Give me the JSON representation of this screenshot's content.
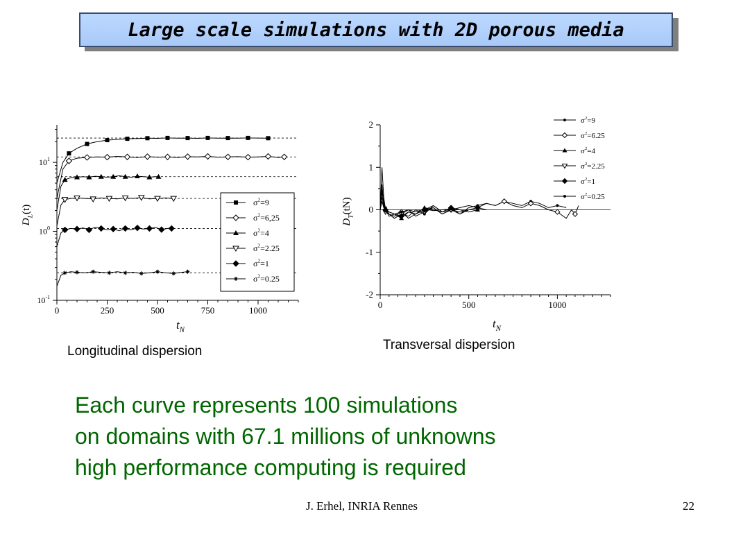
{
  "slide": {
    "title": "Large scale simulations with 2D porous media",
    "caption_left": "Longitudinal dispersion",
    "caption_right": "Transversal dispersion",
    "body_lines": [
      "Each curve represents 100 simulations",
      "on domains with 67.1 millions of unknowns",
      "high performance computing is required"
    ],
    "footer_left": "J. Erhel, INRIA Rennes",
    "footer_right": "22"
  },
  "colors": {
    "title_fill": "#a8caf8",
    "body_text": "#006600"
  },
  "chart_data": [
    {
      "type": "line",
      "y_scale": "log",
      "xlim": [
        0,
        1200
      ],
      "ylim": [
        0.1,
        35
      ],
      "xticks": [
        0,
        250,
        500,
        750,
        1000
      ],
      "ytick_labels": [
        "10-1",
        "100",
        "101"
      ],
      "xlabel": "tN",
      "ylabel": "DL(t)",
      "legend_position": "bottom-right",
      "series": [
        {
          "name": "σ2=9",
          "marker": "square-filled",
          "plateau": 22.5,
          "x_end": 1060,
          "x": [
            0,
            30,
            60,
            100,
            150,
            200,
            250,
            300,
            350,
            400,
            450,
            500,
            550,
            600,
            650,
            700,
            750,
            800,
            850,
            900,
            950,
            1000,
            1050
          ],
          "y": [
            5,
            10,
            13.5,
            16,
            18.5,
            20,
            21,
            21.5,
            22,
            22.2,
            22.4,
            22.3,
            22.6,
            22.4,
            22.5,
            22.3,
            22.6,
            22.4,
            22.5,
            22.4,
            22.6,
            22.5,
            22.4
          ]
        },
        {
          "name": "σ2=6,25",
          "marker": "diamond-open",
          "plateau": 12,
          "x_end": 1130,
          "x": [
            0,
            30,
            60,
            100,
            150,
            200,
            250,
            300,
            350,
            400,
            450,
            500,
            550,
            600,
            650,
            700,
            750,
            800,
            850,
            900,
            950,
            1000,
            1050,
            1100,
            1130
          ],
          "y": [
            3,
            8,
            10.5,
            11.5,
            11.8,
            12,
            11.9,
            12.2,
            12,
            11.8,
            12.1,
            11.9,
            12,
            11.8,
            12.1,
            12,
            12.2,
            11.9,
            12,
            12.1,
            11.9,
            12,
            12.2,
            11.8,
            12
          ]
        },
        {
          "name": "σ2=4",
          "marker": "triangle-filled",
          "plateau": 6.2,
          "x_end": 505,
          "x": [
            0,
            20,
            40,
            70,
            100,
            130,
            160,
            190,
            220,
            250,
            280,
            310,
            340,
            370,
            400,
            430,
            460,
            490,
            505
          ],
          "y": [
            2,
            4.5,
            5.6,
            6,
            6.1,
            6.2,
            6.1,
            6.3,
            6.2,
            6.1,
            6.2,
            6.4,
            6.2,
            6.1,
            6.3,
            6.2,
            6.1,
            6.2,
            6.2
          ]
        },
        {
          "name": "σ2=2.25",
          "marker": "triangle-down-open",
          "plateau": 3,
          "x_end": 580,
          "x": [
            0,
            20,
            40,
            70,
            100,
            140,
            180,
            220,
            260,
            300,
            340,
            380,
            420,
            460,
            500,
            540,
            580
          ],
          "y": [
            1.2,
            2.4,
            2.9,
            3,
            3.05,
            3,
            2.95,
            3.05,
            3,
            2.95,
            3.05,
            3,
            3.1,
            2.95,
            3,
            3.05,
            3
          ]
        },
        {
          "name": "σ2=1",
          "marker": "diamond-filled",
          "plateau": 1.1,
          "x_end": 570,
          "x": [
            0,
            20,
            40,
            70,
            100,
            130,
            160,
            190,
            220,
            250,
            280,
            310,
            340,
            370,
            400,
            430,
            460,
            490,
            520,
            550,
            570
          ],
          "y": [
            0.6,
            0.95,
            1.05,
            1.1,
            1.08,
            1.12,
            1.05,
            1.15,
            1.1,
            1.05,
            1.08,
            1.02,
            1.1,
            1.05,
            1.12,
            1.08,
            1.1,
            1.14,
            1.06,
            1.1,
            1.1
          ]
        },
        {
          "name": "σ2=0.25",
          "marker": "star",
          "plateau": 0.25,
          "x_end": 650,
          "x": [
            0,
            20,
            40,
            70,
            100,
            140,
            180,
            220,
            260,
            300,
            340,
            380,
            420,
            460,
            500,
            540,
            580,
            620,
            650
          ],
          "y": [
            0.16,
            0.23,
            0.25,
            0.26,
            0.255,
            0.25,
            0.26,
            0.255,
            0.25,
            0.26,
            0.25,
            0.255,
            0.245,
            0.25,
            0.26,
            0.25,
            0.245,
            0.255,
            0.26
          ]
        }
      ]
    },
    {
      "type": "line",
      "xlim": [
        0,
        1300
      ],
      "ylim": [
        -2,
        2
      ],
      "xticks": [
        0,
        500,
        1000
      ],
      "yticks": [
        -2,
        -1,
        0,
        1,
        2
      ],
      "xlabel": "tN",
      "ylabel": "DT(tN)",
      "legend_position": "top-right",
      "series": [
        {
          "name": "σ2=9",
          "marker": "dot",
          "x": [
            0,
            10,
            20,
            30,
            50,
            80,
            120,
            160,
            200,
            250,
            300,
            350,
            400,
            450,
            500,
            550,
            600,
            650,
            700,
            750,
            800,
            850,
            900,
            950,
            1000,
            1050
          ],
          "y": [
            0,
            0.3,
            0.1,
            0.05,
            -0.1,
            -0.2,
            -0.1,
            -0.15,
            0,
            -0.1,
            0.1,
            -0.05,
            0,
            -0.1,
            0.05,
            0.1,
            0.15,
            0.1,
            0.2,
            0.15,
            0.1,
            0.2,
            0.15,
            0.05,
            0.1,
            0.05
          ]
        },
        {
          "name": "σ2=6.25",
          "marker": "diamond-open",
          "x": [
            0,
            10,
            20,
            30,
            50,
            80,
            120,
            160,
            200,
            250,
            300,
            350,
            400,
            450,
            500,
            550,
            600,
            650,
            700,
            750,
            800,
            850,
            900,
            950,
            1000,
            1050,
            1080,
            1100,
            1120
          ],
          "y": [
            0,
            0.4,
            0.2,
            0,
            -0.1,
            -0.15,
            -0.05,
            -0.2,
            -0.1,
            0,
            0.05,
            -0.1,
            0,
            0.05,
            0.1,
            0.05,
            0.15,
            0.1,
            0.2,
            0.1,
            0.05,
            0.15,
            0.1,
            0,
            -0.05,
            -0.2,
            0,
            -0.1,
            0.1
          ]
        },
        {
          "name": "σ2=4",
          "marker": "triangle-filled",
          "x": [
            0,
            10,
            20,
            30,
            50,
            80,
            120,
            160,
            200,
            250,
            300,
            350,
            400,
            450,
            500,
            550
          ],
          "y": [
            0,
            1,
            0.3,
            0,
            -0.15,
            -0.1,
            -0.2,
            -0.05,
            -0.1,
            0.05,
            0,
            -0.05,
            0.05,
            0,
            -0.05,
            0
          ]
        },
        {
          "name": "σ2=2.25",
          "marker": "triangle-down-open",
          "x": [
            0,
            10,
            20,
            30,
            50,
            80,
            120,
            160,
            200,
            250,
            300,
            350,
            400,
            450,
            500
          ],
          "y": [
            0,
            0.5,
            0.1,
            -0.05,
            -0.1,
            -0.2,
            -0.1,
            0,
            -0.15,
            -0.05,
            0.05,
            -0.1,
            0,
            -0.05,
            0
          ]
        },
        {
          "name": "σ2=1",
          "marker": "diamond-filled",
          "x": [
            0,
            10,
            20,
            30,
            50,
            80,
            120,
            160,
            200,
            250,
            300,
            350,
            400,
            450,
            500,
            550,
            600
          ],
          "y": [
            0,
            0.6,
            0.15,
            0,
            -0.05,
            -0.1,
            -0.15,
            -0.05,
            -0.1,
            0,
            0.1,
            -0.05,
            0.05,
            -0.1,
            0,
            0.05,
            0
          ]
        },
        {
          "name": "σ2=0.25",
          "marker": "dot",
          "x": [
            0,
            10,
            20,
            30,
            50,
            80,
            120,
            160,
            200,
            250,
            300,
            350,
            400,
            450
          ],
          "y": [
            0,
            0.2,
            0.05,
            0,
            -0.05,
            -0.1,
            -0.05,
            0,
            -0.05,
            0.02,
            -0.02,
            0,
            0.02,
            0
          ]
        }
      ]
    }
  ]
}
